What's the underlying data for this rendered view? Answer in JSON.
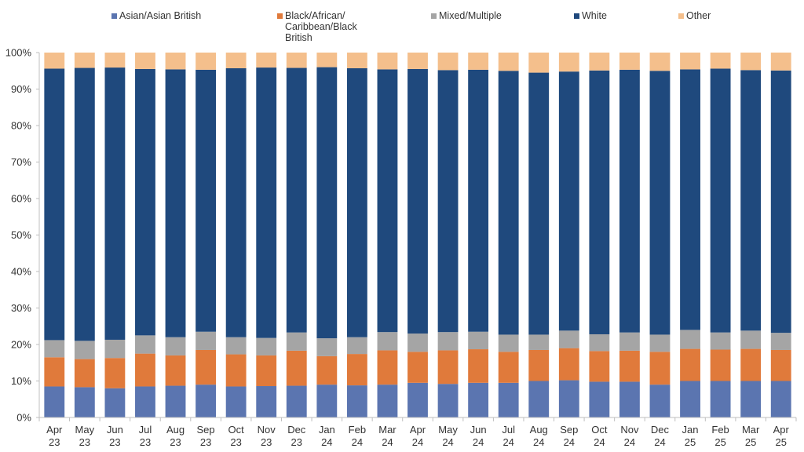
{
  "chart_data": {
    "type": "bar",
    "stacked": true,
    "percent": true,
    "title": "",
    "xlabel": "",
    "ylabel": "",
    "ylim": [
      0,
      100
    ],
    "yticks": [
      "0%",
      "10%",
      "20%",
      "30%",
      "40%",
      "50%",
      "60%",
      "70%",
      "80%",
      "90%",
      "100%"
    ],
    "grid": false,
    "legend_position": "top",
    "categories": [
      [
        "Apr",
        "23"
      ],
      [
        "May",
        "23"
      ],
      [
        "Jun",
        "23"
      ],
      [
        "Jul",
        "23"
      ],
      [
        "Aug",
        "23"
      ],
      [
        "Sep",
        "23"
      ],
      [
        "Oct",
        "23"
      ],
      [
        "Nov",
        "23"
      ],
      [
        "Dec",
        "23"
      ],
      [
        "Jan",
        "24"
      ],
      [
        "Feb",
        "24"
      ],
      [
        "Mar",
        "24"
      ],
      [
        "Apr",
        "24"
      ],
      [
        "May",
        "24"
      ],
      [
        "Jun",
        "24"
      ],
      [
        "Jul",
        "24"
      ],
      [
        "Aug",
        "24"
      ],
      [
        "Sep",
        "24"
      ],
      [
        "Oct",
        "24"
      ],
      [
        "Nov",
        "24"
      ],
      [
        "Dec",
        "24"
      ],
      [
        "Jan",
        "25"
      ],
      [
        "Feb",
        "25"
      ],
      [
        "Mar",
        "25"
      ],
      [
        "Apr",
        "25"
      ]
    ],
    "series": [
      {
        "name": "Asian/Asian British",
        "label_lines": [
          "Asian/Asian British"
        ],
        "color": "#5b75b0",
        "values": [
          8.5,
          8.3,
          8.0,
          8.5,
          8.7,
          9.0,
          8.5,
          8.6,
          8.7,
          9.0,
          8.8,
          9.0,
          9.5,
          9.2,
          9.5,
          9.5,
          10.0,
          10.2,
          9.8,
          9.8,
          9.0,
          10.0,
          10.0,
          10.0,
          10.0
        ]
      },
      {
        "name": "Black/African/Caribbean/Black British",
        "label_lines": [
          "Black/African/",
          "Caribbean/Black",
          "British"
        ],
        "color": "#e07a3b",
        "values": [
          8.0,
          7.7,
          8.3,
          9.0,
          8.3,
          9.5,
          8.8,
          8.4,
          9.6,
          7.8,
          8.6,
          9.4,
          8.5,
          9.2,
          9.2,
          8.5,
          8.5,
          8.8,
          8.4,
          8.5,
          9.0,
          8.8,
          8.6,
          8.8,
          8.5
        ]
      },
      {
        "name": "Mixed/Multiple",
        "label_lines": [
          "Mixed/Multiple"
        ],
        "color": "#a5a5a5",
        "values": [
          4.7,
          5.0,
          5.0,
          5.0,
          5.0,
          5.0,
          4.7,
          4.8,
          5.0,
          4.9,
          4.6,
          5.0,
          5.0,
          5.0,
          4.8,
          4.7,
          4.2,
          4.8,
          4.6,
          5.0,
          4.7,
          5.2,
          4.7,
          5.0,
          4.7
        ]
      },
      {
        "name": "White",
        "label_lines": [
          "White"
        ],
        "color": "#1f497d",
        "values": [
          74.4,
          74.8,
          74.6,
          73.0,
          73.4,
          71.8,
          73.7,
          74.1,
          72.5,
          74.3,
          73.7,
          72.0,
          72.5,
          71.8,
          71.8,
          72.3,
          71.8,
          71.0,
          72.3,
          72.0,
          72.3,
          71.4,
          72.3,
          71.4,
          71.9
        ]
      },
      {
        "name": "Other",
        "label_lines": [
          "Other"
        ],
        "color": "#f4bf8c",
        "values": [
          4.4,
          4.2,
          4.1,
          4.5,
          4.6,
          4.7,
          4.3,
          4.1,
          4.2,
          4.0,
          4.3,
          4.6,
          4.5,
          4.8,
          4.7,
          5.0,
          5.5,
          5.2,
          4.9,
          4.7,
          5.0,
          4.6,
          4.4,
          4.8,
          4.9
        ]
      }
    ]
  }
}
